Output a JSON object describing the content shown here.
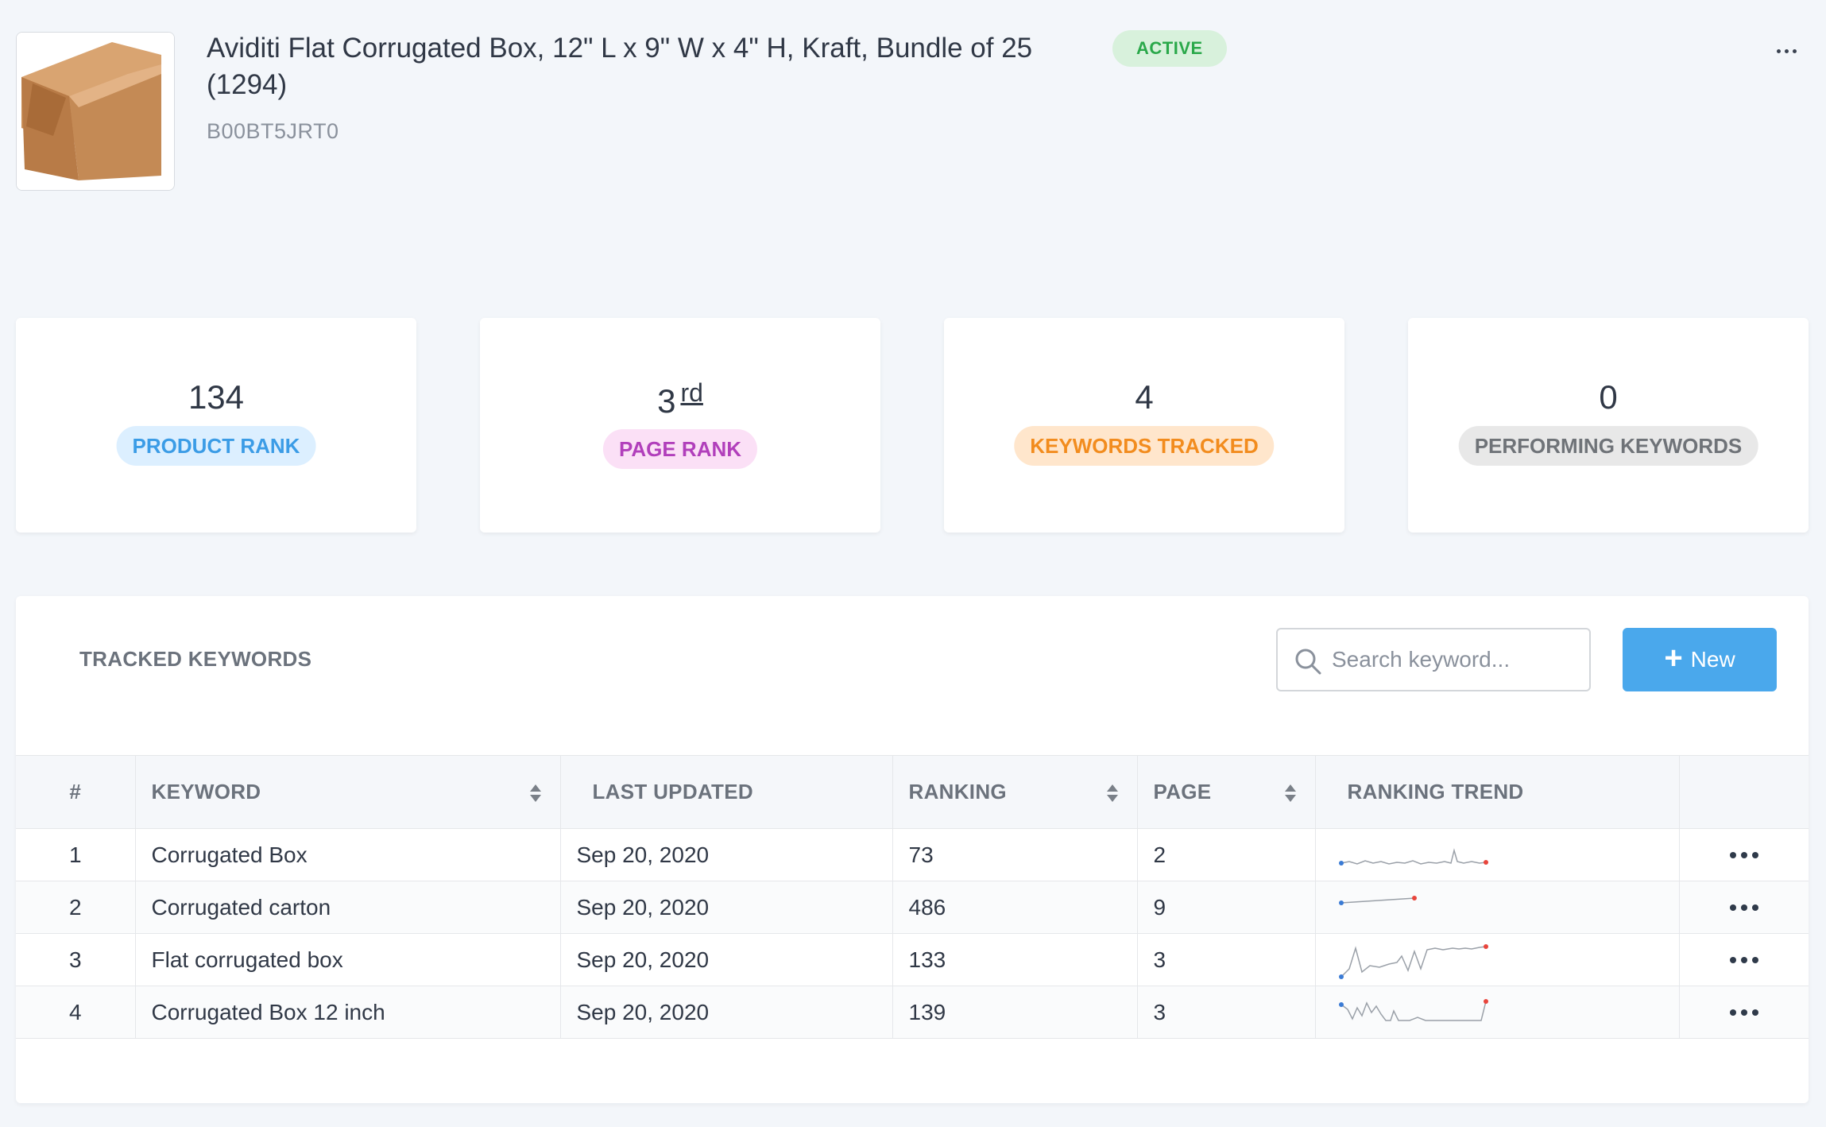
{
  "product": {
    "title": "Aviditi Flat Corrugated Box, 12\" L x 9\" W x 4\" H, Kraft, Bundle of 25 (1294)",
    "asin": "B00BT5JRT0",
    "status": "ACTIVE",
    "menu_icon": "more-horizontal-icon"
  },
  "stats": [
    {
      "value": "134",
      "label": "PRODUCT RANK",
      "color": "#3b9ce6"
    },
    {
      "value": "3",
      "suffix": "rd",
      "label": "PAGE RANK",
      "color": "#b13fbb"
    },
    {
      "value": "4",
      "label": "KEYWORDS TRACKED",
      "color": "#f28c1e"
    },
    {
      "value": "0",
      "label": "PERFORMING KEYWORDS",
      "color": "#6f7378"
    }
  ],
  "keywords_panel": {
    "title": "TRACKED KEYWORDS",
    "search_placeholder": "Search keyword...",
    "new_button": "New",
    "columns": [
      "#",
      "KEYWORD",
      "LAST UPDATED",
      "RANKING",
      "PAGE",
      "RANKING TREND"
    ],
    "rows": [
      {
        "index": "1",
        "keyword": "Corrugated Box",
        "last_updated": "Sep 20, 2020",
        "ranking": "73",
        "page": "2"
      },
      {
        "index": "2",
        "keyword": "Corrugated carton",
        "last_updated": "Sep 20, 2020",
        "ranking": "486",
        "page": "9"
      },
      {
        "index": "3",
        "keyword": "Flat corrugated box",
        "last_updated": "Sep 20, 2020",
        "ranking": "133",
        "page": "3"
      },
      {
        "index": "4",
        "keyword": "Corrugated Box 12 inch",
        "last_updated": "Sep 20, 2020",
        "ranking": "139",
        "page": "3"
      }
    ]
  },
  "colors": {
    "accent": "#4aa8ec",
    "trend_start": "#3a7bd5",
    "trend_end": "#e8453c",
    "active_badge": "#2aa84a"
  }
}
